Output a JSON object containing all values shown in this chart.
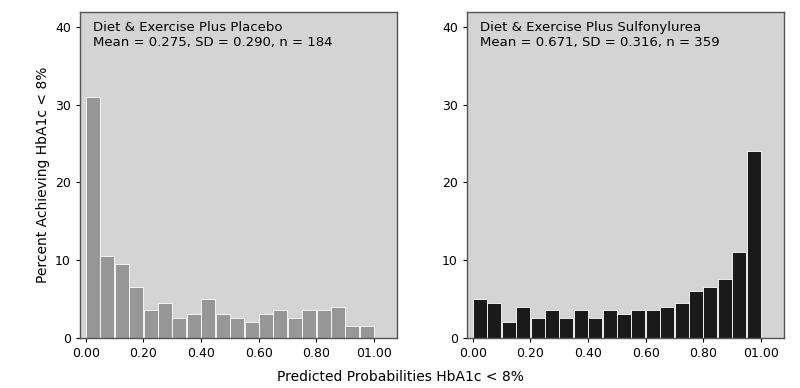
{
  "left_title_line1": "Diet & Exercise Plus Placebo",
  "left_title_line2": "Mean = 0.275, SD = 0.290, n = 184",
  "right_title_line1": "Diet & Exercise Plus Sulfonylurea",
  "right_title_line2": "Mean = 0.671, SD = 0.316, n = 359",
  "xlabel": "Predicted Probabilities HbA1c < 8%",
  "ylabel": "Percent Achieving HbA1c < 8%",
  "ylim": [
    0,
    42
  ],
  "yticks": [
    0,
    10,
    20,
    30,
    40
  ],
  "xlim": [
    -0.02,
    1.08
  ],
  "xticks": [
    0.0,
    0.2,
    0.4,
    0.6,
    0.8,
    1.0
  ],
  "xticklabels": [
    "0.00",
    "0.20",
    "0.40",
    "0.60",
    "0.80",
    "01.00"
  ],
  "bin_edges": [
    0.0,
    0.05,
    0.1,
    0.15,
    0.2,
    0.25,
    0.3,
    0.35,
    0.4,
    0.45,
    0.5,
    0.55,
    0.6,
    0.65,
    0.7,
    0.75,
    0.8,
    0.85,
    0.9,
    0.95,
    1.0
  ],
  "left_values": [
    31.0,
    10.5,
    9.5,
    6.5,
    3.5,
    4.5,
    2.5,
    3.0,
    5.0,
    3.0,
    2.5,
    2.0,
    3.0,
    3.5,
    2.5,
    3.5,
    3.5,
    4.0,
    1.5,
    1.5
  ],
  "right_values": [
    5.0,
    4.5,
    2.0,
    4.0,
    2.5,
    3.5,
    2.5,
    3.5,
    2.5,
    3.5,
    3.0,
    3.5,
    3.5,
    4.0,
    4.5,
    6.0,
    6.5,
    7.5,
    11.0,
    24.0
  ],
  "left_color": "#979797",
  "right_color": "#1a1a1a",
  "bg_color": "#d4d4d4",
  "outer_bg": "#ffffff",
  "bar_edge_color": "#ffffff",
  "bar_linewidth": 0.6,
  "title_fontsize": 9.5,
  "label_fontsize": 10,
  "tick_fontsize": 9,
  "spine_color": "#555555"
}
